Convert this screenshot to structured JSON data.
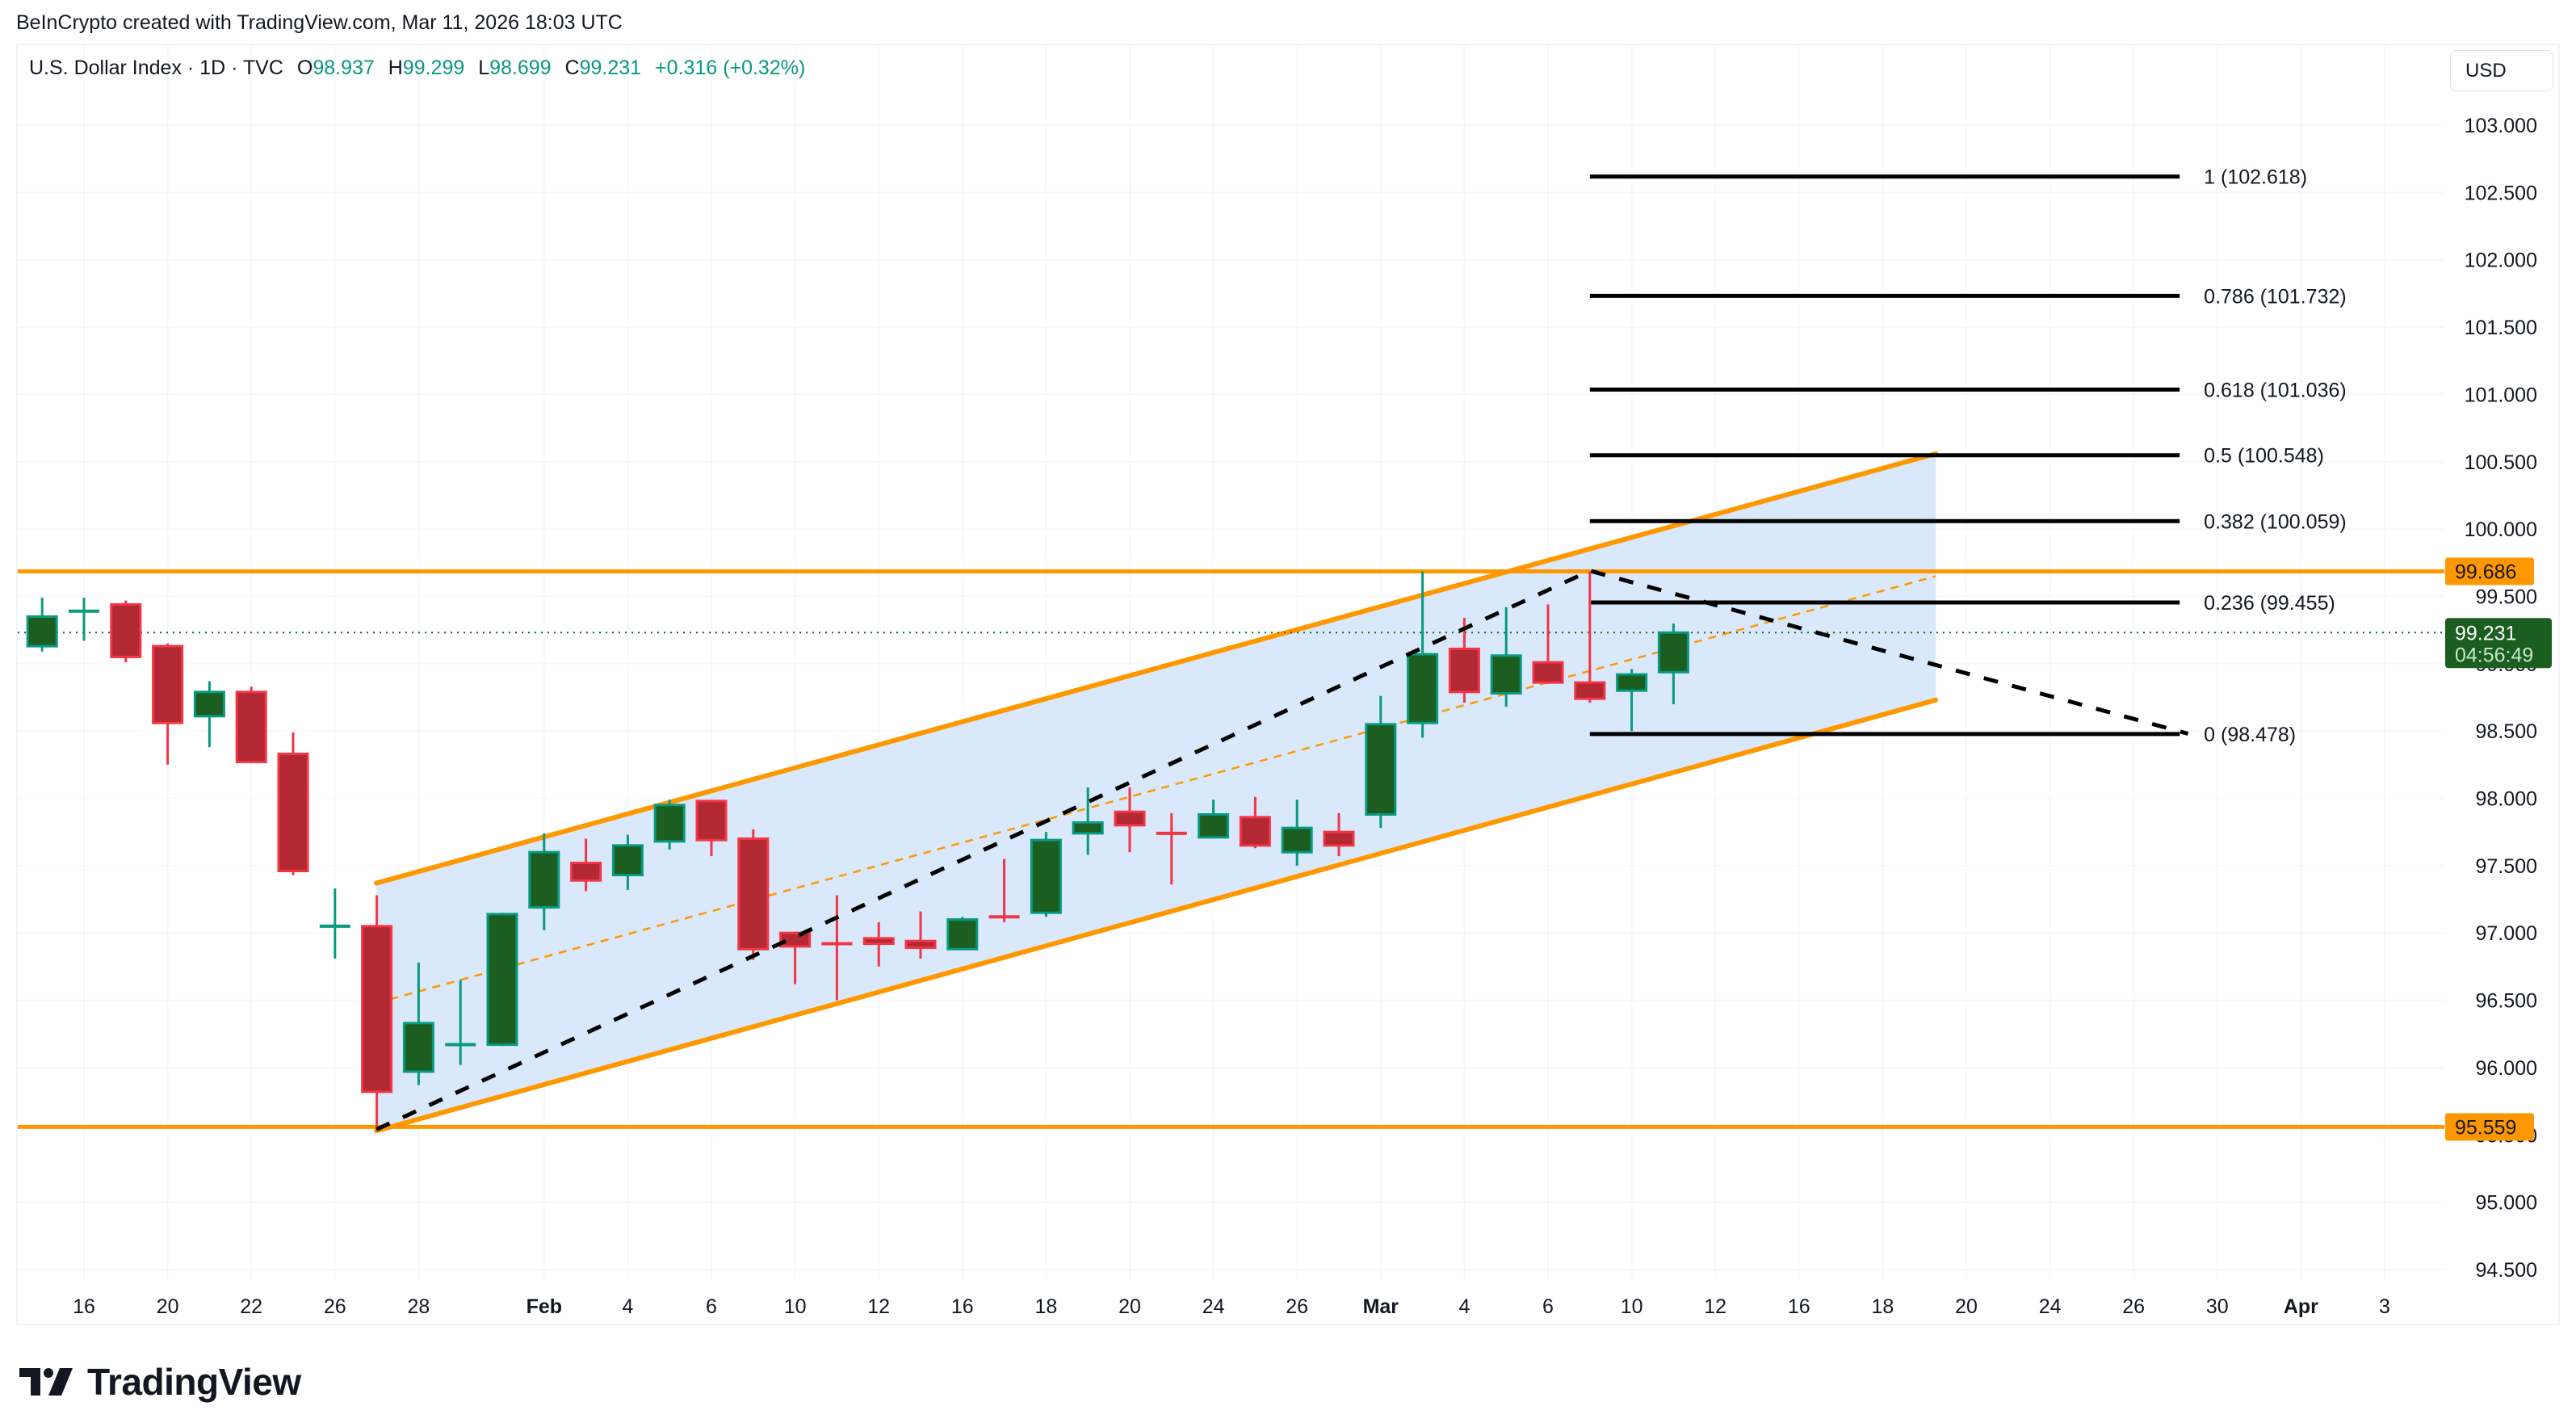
{
  "credit": "BeInCrypto created with TradingView.com, Mar 11, 2026 18:03 UTC",
  "legend": {
    "symbol": "U.S. Dollar Index · 1D · TVC",
    "open_label": "O",
    "open": "98.937",
    "high_label": "H",
    "high": "99.299",
    "low_label": "L",
    "low": "98.699",
    "close_label": "C",
    "close": "99.231",
    "change": "+0.316 (+0.32%)"
  },
  "currency_button": "USD",
  "current_price": {
    "value": "99.231",
    "countdown": "04:56:49"
  },
  "logo_text": "TradingView",
  "colors": {
    "up": "#1b5e20",
    "up_border": "#089981",
    "down": "#b22833",
    "down_border": "#f23645",
    "channel": "#ff9800",
    "channel_fill": "#d9e8fa",
    "fib_line": "#000000",
    "current_price": "#1b5e20"
  },
  "chart_data": {
    "type": "candlestick",
    "title": "U.S. Dollar Index · 1D · TVC",
    "ylabel": "USD",
    "ylim": [
      94.3,
      103.3
    ],
    "y_ticks": [
      "103.000",
      "102.500",
      "102.000",
      "101.500",
      "101.000",
      "100.500",
      "100.000",
      "99.500",
      "99.000",
      "98.500",
      "98.000",
      "97.500",
      "97.000",
      "96.500",
      "96.000",
      "95.500",
      "95.000",
      "94.500"
    ],
    "x_ticks": [
      {
        "label": "16",
        "i": 0
      },
      {
        "label": "20",
        "i": 2
      },
      {
        "label": "22",
        "i": 4
      },
      {
        "label": "26",
        "i": 6
      },
      {
        "label": "28",
        "i": 8
      },
      {
        "label": "Feb",
        "i": 11,
        "bold": true
      },
      {
        "label": "4",
        "i": 13
      },
      {
        "label": "6",
        "i": 15
      },
      {
        "label": "10",
        "i": 17
      },
      {
        "label": "12",
        "i": 19
      },
      {
        "label": "16",
        "i": 21
      },
      {
        "label": "18",
        "i": 23
      },
      {
        "label": "20",
        "i": 25
      },
      {
        "label": "24",
        "i": 27
      },
      {
        "label": "26",
        "i": 29
      },
      {
        "label": "Mar",
        "i": 31,
        "bold": true
      },
      {
        "label": "4",
        "i": 33
      },
      {
        "label": "6",
        "i": 35
      },
      {
        "label": "10",
        "i": 37
      },
      {
        "label": "12",
        "i": 39
      },
      {
        "label": "16",
        "i": 41
      },
      {
        "label": "18",
        "i": 43
      },
      {
        "label": "20",
        "i": 45
      },
      {
        "label": "24",
        "i": 47
      },
      {
        "label": "26",
        "i": 49
      },
      {
        "label": "30",
        "i": 51
      },
      {
        "label": "Apr",
        "i": 53,
        "bold": true
      },
      {
        "label": "3",
        "i": 55
      }
    ],
    "candles": [
      {
        "date": "Jan 15",
        "i": -1,
        "o": 99.13,
        "h": 99.49,
        "l": 99.09,
        "c": 99.35
      },
      {
        "date": "Jan 16",
        "i": 0,
        "o": 99.38,
        "h": 99.49,
        "l": 99.17,
        "c": 99.39
      },
      {
        "date": "Jan 19",
        "i": 1,
        "o": 99.44,
        "h": 99.47,
        "l": 99.01,
        "c": 99.05
      },
      {
        "date": "Jan 20",
        "i": 2,
        "o": 99.13,
        "h": 99.15,
        "l": 98.25,
        "c": 98.56
      },
      {
        "date": "Jan 21",
        "i": 3,
        "o": 98.61,
        "h": 98.87,
        "l": 98.38,
        "c": 98.79
      },
      {
        "date": "Jan 22",
        "i": 4,
        "o": 98.79,
        "h": 98.83,
        "l": 98.26,
        "c": 98.27
      },
      {
        "date": "Jan 23",
        "i": 5,
        "o": 98.33,
        "h": 98.49,
        "l": 97.43,
        "c": 97.46
      },
      {
        "date": "Jan 26",
        "i": 6,
        "o": 97.03,
        "h": 97.33,
        "l": 96.81,
        "c": 97.05
      },
      {
        "date": "Jan 27",
        "i": 7,
        "o": 97.05,
        "h": 97.28,
        "l": 95.56,
        "c": 95.82
      },
      {
        "date": "Jan 28",
        "i": 8,
        "o": 95.97,
        "h": 96.78,
        "l": 95.87,
        "c": 96.33
      },
      {
        "date": "Jan 29",
        "i": 9,
        "o": 96.16,
        "h": 96.65,
        "l": 96.02,
        "c": 96.17
      },
      {
        "date": "Jan 30",
        "i": 10,
        "o": 96.17,
        "h": 97.15,
        "l": 96.16,
        "c": 97.14
      },
      {
        "date": "Feb 2",
        "i": 11,
        "o": 97.19,
        "h": 97.74,
        "l": 97.02,
        "c": 97.6
      },
      {
        "date": "Feb 3",
        "i": 12,
        "o": 97.52,
        "h": 97.7,
        "l": 97.31,
        "c": 97.39
      },
      {
        "date": "Feb 4",
        "i": 13,
        "o": 97.43,
        "h": 97.73,
        "l": 97.32,
        "c": 97.65
      },
      {
        "date": "Feb 5",
        "i": 14,
        "o": 97.68,
        "h": 97.99,
        "l": 97.62,
        "c": 97.95
      },
      {
        "date": "Feb 6",
        "i": 15,
        "o": 97.98,
        "h": 97.99,
        "l": 97.57,
        "c": 97.69
      },
      {
        "date": "Feb 9",
        "i": 16,
        "o": 97.7,
        "h": 97.77,
        "l": 96.8,
        "c": 96.88
      },
      {
        "date": "Feb 10",
        "i": 17,
        "o": 97.0,
        "h": 97.01,
        "l": 96.62,
        "c": 96.9
      },
      {
        "date": "Feb 11",
        "i": 18,
        "o": 96.92,
        "h": 97.28,
        "l": 96.5,
        "c": 96.91
      },
      {
        "date": "Feb 12",
        "i": 19,
        "o": 96.96,
        "h": 97.08,
        "l": 96.75,
        "c": 96.92
      },
      {
        "date": "Feb 13",
        "i": 20,
        "o": 96.94,
        "h": 97.16,
        "l": 96.81,
        "c": 96.89
      },
      {
        "date": "Feb 16",
        "i": 21,
        "o": 96.88,
        "h": 97.12,
        "l": 96.88,
        "c": 97.1
      },
      {
        "date": "Feb 17",
        "i": 22,
        "o": 97.12,
        "h": 97.55,
        "l": 97.08,
        "c": 97.11
      },
      {
        "date": "Feb 18",
        "i": 23,
        "o": 97.15,
        "h": 97.75,
        "l": 97.12,
        "c": 97.69
      },
      {
        "date": "Feb 19",
        "i": 24,
        "o": 97.74,
        "h": 98.08,
        "l": 97.58,
        "c": 97.82
      },
      {
        "date": "Feb 20",
        "i": 25,
        "o": 97.9,
        "h": 98.08,
        "l": 97.6,
        "c": 97.8
      },
      {
        "date": "Feb 23",
        "i": 26,
        "o": 97.74,
        "h": 97.89,
        "l": 97.36,
        "c": 97.73
      },
      {
        "date": "Feb 24",
        "i": 27,
        "o": 97.71,
        "h": 97.99,
        "l": 97.7,
        "c": 97.88
      },
      {
        "date": "Feb 25",
        "i": 28,
        "o": 97.86,
        "h": 98.01,
        "l": 97.63,
        "c": 97.65
      },
      {
        "date": "Feb 26",
        "i": 29,
        "o": 97.6,
        "h": 97.99,
        "l": 97.5,
        "c": 97.78
      },
      {
        "date": "Feb 27",
        "i": 30,
        "o": 97.75,
        "h": 97.89,
        "l": 97.57,
        "c": 97.65
      },
      {
        "date": "Mar 2",
        "i": 31,
        "o": 97.88,
        "h": 98.76,
        "l": 97.78,
        "c": 98.55
      },
      {
        "date": "Mar 3",
        "i": 32,
        "o": 98.56,
        "h": 99.686,
        "l": 98.45,
        "c": 99.07
      },
      {
        "date": "Mar 4",
        "i": 33,
        "o": 99.11,
        "h": 99.34,
        "l": 98.71,
        "c": 98.79
      },
      {
        "date": "Mar 5",
        "i": 34,
        "o": 98.78,
        "h": 99.42,
        "l": 98.68,
        "c": 99.06
      },
      {
        "date": "Mar 6",
        "i": 35,
        "o": 99.01,
        "h": 99.44,
        "l": 98.85,
        "c": 98.86
      },
      {
        "date": "Mar 9",
        "i": 36,
        "o": 98.86,
        "h": 99.686,
        "l": 98.71,
        "c": 98.74
      },
      {
        "date": "Mar 10",
        "i": 37,
        "o": 98.8,
        "h": 98.96,
        "l": 98.5,
        "c": 98.92
      },
      {
        "date": "Mar 11",
        "i": 38,
        "o": 98.937,
        "h": 99.299,
        "l": 98.699,
        "c": 99.231
      }
    ],
    "horizontal_levels": [
      {
        "price": 99.686,
        "label": "99.686",
        "color": "#ff9800"
      },
      {
        "price": 95.559,
        "label": "95.559",
        "color": "#ff9800"
      }
    ],
    "fibonacci": {
      "start_i": 36,
      "end_i": 50.1,
      "levels": [
        {
          "ratio": "1",
          "price": 102.618,
          "label": "1 (102.618)"
        },
        {
          "ratio": "0.786",
          "price": 101.732,
          "label": "0.786 (101.732)"
        },
        {
          "ratio": "0.618",
          "price": 101.036,
          "label": "0.618 (101.036)"
        },
        {
          "ratio": "0.5",
          "price": 100.548,
          "label": "0.5 (100.548)"
        },
        {
          "ratio": "0.382",
          "price": 100.059,
          "label": "0.382 (100.059)"
        },
        {
          "ratio": "0.236",
          "price": 99.455,
          "label": "0.236 (99.455)"
        },
        {
          "ratio": "0",
          "price": 98.478,
          "label": "0 (98.478)"
        }
      ]
    },
    "ascending_channel": {
      "start_i": 6.99,
      "end_i": 44.27,
      "upper": [
        97.37,
        100.56
      ],
      "lower": [
        95.53,
        98.73
      ],
      "mid_dashed": [
        96.48,
        99.65
      ]
    },
    "trend_dashed": [
      {
        "i": 6.99,
        "p": 95.54
      },
      {
        "i": 36.0,
        "p": 99.69
      },
      {
        "i": 50.3,
        "p": 98.48
      }
    ],
    "current_price_line": 99.231
  }
}
